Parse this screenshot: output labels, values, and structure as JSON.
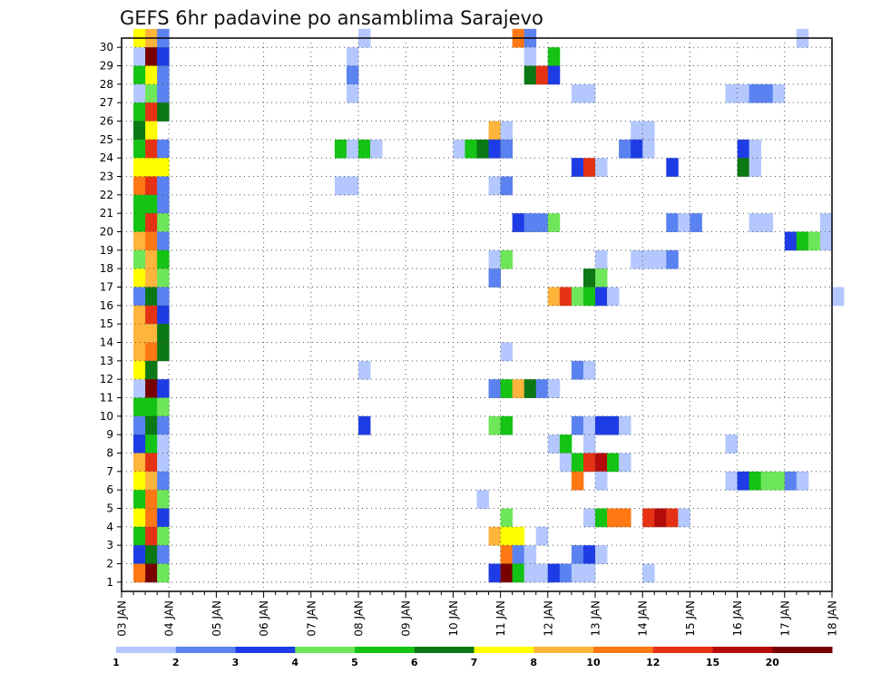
{
  "chart_data": {
    "type": "heatmap",
    "title": "GEFS 6hr padavine po ansamblima Sarajevo",
    "xlabel": "",
    "ylabel": "",
    "x_tick_labels": [
      "03 JAN",
      "04 JAN",
      "05 JAN",
      "06 JAN",
      "07 JAN",
      "08 JAN",
      "09 JAN",
      "10 JAN",
      "11 JAN",
      "12 JAN",
      "13 JAN",
      "14 JAN",
      "15 JAN",
      "16 JAN",
      "17 JAN",
      "18 JAN"
    ],
    "x_range": [
      "03 JAN",
      "18 JAN"
    ],
    "x_step_hours": 6,
    "y_tick_labels": [
      "1",
      "2",
      "3",
      "4",
      "5",
      "6",
      "7",
      "8",
      "9",
      "10",
      "11",
      "12",
      "13",
      "14",
      "15",
      "16",
      "17",
      "18",
      "19",
      "20",
      "21",
      "22",
      "23",
      "24",
      "25",
      "26",
      "27",
      "28",
      "29",
      "30"
    ],
    "y_range": [
      0,
      30
    ],
    "grid": true,
    "grid_style": "dotted",
    "colorbar": {
      "placement": "bottom",
      "labels": [
        "1",
        "2",
        "3",
        "4",
        "5",
        "6",
        "7",
        "8",
        "10",
        "12",
        "15",
        "20"
      ],
      "colors": [
        "#b4c8ff",
        "#5a82f0",
        "#1e3ce6",
        "#6ee65a",
        "#14c314",
        "#0a7814",
        "#ffff00",
        "#ffb43c",
        "#ff7814",
        "#e63214",
        "#b40a0a",
        "#780000"
      ]
    },
    "cells_format": "[member, day, step, color_index]",
    "cells": [
      [
        30,
        0,
        1,
        6
      ],
      [
        30,
        0,
        2,
        7
      ],
      [
        30,
        0,
        3,
        1
      ],
      [
        30,
        5,
        0,
        0
      ],
      [
        30,
        8,
        1,
        8
      ],
      [
        30,
        8,
        2,
        1
      ],
      [
        30,
        14,
        1,
        0
      ],
      [
        29,
        0,
        1,
        0
      ],
      [
        29,
        0,
        2,
        11
      ],
      [
        29,
        0,
        3,
        2
      ],
      [
        29,
        4,
        3,
        0
      ],
      [
        29,
        8,
        2,
        0
      ],
      [
        29,
        9,
        0,
        4
      ],
      [
        28,
        0,
        1,
        4
      ],
      [
        28,
        0,
        2,
        6
      ],
      [
        28,
        0,
        3,
        1
      ],
      [
        28,
        4,
        3,
        1
      ],
      [
        28,
        8,
        2,
        5
      ],
      [
        28,
        8,
        3,
        9
      ],
      [
        28,
        9,
        0,
        2
      ],
      [
        27,
        0,
        1,
        0
      ],
      [
        27,
        0,
        2,
        3
      ],
      [
        27,
        0,
        3,
        1
      ],
      [
        27,
        4,
        3,
        0
      ],
      [
        27,
        9,
        2,
        0
      ],
      [
        27,
        9,
        3,
        0
      ],
      [
        27,
        12,
        3,
        0
      ],
      [
        27,
        13,
        0,
        0
      ],
      [
        27,
        13,
        1,
        1
      ],
      [
        27,
        13,
        2,
        1
      ],
      [
        27,
        13,
        3,
        0
      ],
      [
        26,
        0,
        1,
        4
      ],
      [
        26,
        0,
        2,
        9
      ],
      [
        26,
        0,
        3,
        5
      ],
      [
        25,
        0,
        1,
        5
      ],
      [
        25,
        0,
        2,
        6
      ],
      [
        25,
        7,
        3,
        7
      ],
      [
        25,
        8,
        0,
        0
      ],
      [
        25,
        10,
        3,
        0
      ],
      [
        25,
        11,
        0,
        0
      ],
      [
        24,
        0,
        1,
        4
      ],
      [
        24,
        0,
        2,
        9
      ],
      [
        24,
        0,
        3,
        1
      ],
      [
        24,
        4,
        2,
        4
      ],
      [
        24,
        4,
        3,
        0
      ],
      [
        24,
        5,
        0,
        4
      ],
      [
        24,
        5,
        1,
        0
      ],
      [
        24,
        7,
        0,
        0
      ],
      [
        24,
        7,
        1,
        4
      ],
      [
        24,
        7,
        2,
        5
      ],
      [
        24,
        7,
        3,
        2
      ],
      [
        24,
        8,
        0,
        1
      ],
      [
        24,
        10,
        2,
        1
      ],
      [
        24,
        10,
        3,
        2
      ],
      [
        24,
        11,
        0,
        0
      ],
      [
        24,
        13,
        0,
        2
      ],
      [
        24,
        13,
        1,
        0
      ],
      [
        23,
        0,
        1,
        6
      ],
      [
        23,
        0,
        2,
        6
      ],
      [
        23,
        0,
        3,
        6
      ],
      [
        23,
        9,
        2,
        2
      ],
      [
        23,
        9,
        3,
        9
      ],
      [
        23,
        10,
        0,
        0
      ],
      [
        23,
        11,
        2,
        2
      ],
      [
        23,
        13,
        0,
        5
      ],
      [
        23,
        13,
        1,
        0
      ],
      [
        22,
        0,
        1,
        8
      ],
      [
        22,
        0,
        2,
        9
      ],
      [
        22,
        0,
        3,
        1
      ],
      [
        22,
        4,
        2,
        0
      ],
      [
        22,
        4,
        3,
        0
      ],
      [
        22,
        7,
        3,
        0
      ],
      [
        22,
        8,
        0,
        1
      ],
      [
        21,
        0,
        1,
        4
      ],
      [
        21,
        0,
        2,
        4
      ],
      [
        21,
        0,
        3,
        1
      ],
      [
        20,
        0,
        1,
        4
      ],
      [
        20,
        0,
        2,
        9
      ],
      [
        20,
        0,
        3,
        3
      ],
      [
        20,
        8,
        1,
        2
      ],
      [
        20,
        8,
        2,
        1
      ],
      [
        20,
        8,
        3,
        1
      ],
      [
        20,
        9,
        0,
        3
      ],
      [
        20,
        11,
        2,
        1
      ],
      [
        20,
        11,
        3,
        0
      ],
      [
        20,
        12,
        0,
        1
      ],
      [
        20,
        13,
        1,
        0
      ],
      [
        20,
        13,
        2,
        0
      ],
      [
        20,
        14,
        3,
        0
      ],
      [
        19,
        0,
        1,
        7
      ],
      [
        19,
        0,
        2,
        8
      ],
      [
        19,
        0,
        3,
        1
      ],
      [
        19,
        14,
        0,
        2
      ],
      [
        19,
        14,
        1,
        4
      ],
      [
        19,
        14,
        2,
        3
      ],
      [
        19,
        14,
        3,
        0
      ],
      [
        18,
        0,
        1,
        3
      ],
      [
        18,
        0,
        2,
        7
      ],
      [
        18,
        0,
        3,
        4
      ],
      [
        18,
        7,
        3,
        0
      ],
      [
        18,
        8,
        0,
        3
      ],
      [
        18,
        10,
        0,
        0
      ],
      [
        18,
        10,
        3,
        0
      ],
      [
        18,
        11,
        0,
        0
      ],
      [
        18,
        11,
        1,
        0
      ],
      [
        18,
        11,
        2,
        1
      ],
      [
        17,
        0,
        1,
        6
      ],
      [
        17,
        0,
        2,
        7
      ],
      [
        17,
        0,
        3,
        3
      ],
      [
        17,
        7,
        3,
        1
      ],
      [
        17,
        9,
        3,
        5
      ],
      [
        17,
        10,
        0,
        3
      ],
      [
        16,
        0,
        1,
        1
      ],
      [
        16,
        0,
        2,
        5
      ],
      [
        16,
        0,
        3,
        1
      ],
      [
        16,
        9,
        0,
        7
      ],
      [
        16,
        9,
        1,
        9
      ],
      [
        16,
        9,
        2,
        3
      ],
      [
        16,
        9,
        3,
        4
      ],
      [
        16,
        10,
        0,
        2
      ],
      [
        16,
        10,
        1,
        0
      ],
      [
        16,
        15,
        0,
        0
      ],
      [
        15,
        0,
        1,
        7
      ],
      [
        15,
        0,
        2,
        9
      ],
      [
        15,
        0,
        3,
        2
      ],
      [
        14,
        0,
        1,
        7
      ],
      [
        14,
        0,
        2,
        7
      ],
      [
        14,
        0,
        3,
        5
      ],
      [
        13,
        0,
        1,
        7
      ],
      [
        13,
        0,
        2,
        8
      ],
      [
        13,
        0,
        3,
        5
      ],
      [
        13,
        8,
        0,
        0
      ],
      [
        12,
        0,
        1,
        6
      ],
      [
        12,
        0,
        2,
        5
      ],
      [
        12,
        5,
        0,
        0
      ],
      [
        12,
        9,
        2,
        1
      ],
      [
        12,
        9,
        3,
        0
      ],
      [
        11,
        0,
        1,
        0
      ],
      [
        11,
        0,
        2,
        11
      ],
      [
        11,
        0,
        3,
        2
      ],
      [
        11,
        7,
        3,
        1
      ],
      [
        11,
        8,
        0,
        4
      ],
      [
        11,
        8,
        1,
        7
      ],
      [
        11,
        8,
        2,
        5
      ],
      [
        11,
        8,
        3,
        1
      ],
      [
        11,
        9,
        0,
        0
      ],
      [
        10,
        0,
        1,
        4
      ],
      [
        10,
        0,
        2,
        4
      ],
      [
        10,
        0,
        3,
        3
      ],
      [
        9,
        0,
        1,
        1
      ],
      [
        9,
        0,
        2,
        5
      ],
      [
        9,
        0,
        3,
        1
      ],
      [
        9,
        5,
        0,
        2
      ],
      [
        9,
        7,
        3,
        3
      ],
      [
        9,
        8,
        0,
        4
      ],
      [
        9,
        9,
        2,
        1
      ],
      [
        9,
        9,
        3,
        0
      ],
      [
        9,
        10,
        0,
        2
      ],
      [
        9,
        10,
        1,
        2
      ],
      [
        9,
        10,
        2,
        0
      ],
      [
        8,
        0,
        1,
        2
      ],
      [
        8,
        0,
        2,
        4
      ],
      [
        8,
        0,
        3,
        0
      ],
      [
        8,
        9,
        3,
        0
      ],
      [
        8,
        9,
        0,
        0
      ],
      [
        8,
        9,
        1,
        4
      ],
      [
        8,
        12,
        3,
        0
      ],
      [
        7,
        0,
        1,
        7
      ],
      [
        7,
        0,
        2,
        9
      ],
      [
        7,
        0,
        3,
        0
      ],
      [
        7,
        9,
        1,
        0
      ],
      [
        7,
        9,
        2,
        4
      ],
      [
        7,
        9,
        3,
        9
      ],
      [
        7,
        10,
        0,
        10
      ],
      [
        7,
        10,
        1,
        4
      ],
      [
        7,
        10,
        2,
        0
      ],
      [
        6,
        0,
        1,
        6
      ],
      [
        6,
        0,
        2,
        7
      ],
      [
        6,
        0,
        3,
        1
      ],
      [
        6,
        9,
        2,
        8
      ],
      [
        6,
        10,
        0,
        0
      ],
      [
        6,
        12,
        3,
        0
      ],
      [
        6,
        13,
        0,
        2
      ],
      [
        6,
        13,
        1,
        4
      ],
      [
        6,
        13,
        2,
        3
      ],
      [
        6,
        13,
        3,
        3
      ],
      [
        6,
        14,
        0,
        1
      ],
      [
        6,
        14,
        1,
        0
      ],
      [
        5,
        0,
        1,
        4
      ],
      [
        5,
        0,
        2,
        8
      ],
      [
        5,
        0,
        3,
        3
      ],
      [
        5,
        7,
        2,
        0
      ],
      [
        4,
        0,
        1,
        6
      ],
      [
        4,
        0,
        2,
        8
      ],
      [
        4,
        0,
        3,
        2
      ],
      [
        4,
        8,
        0,
        3
      ],
      [
        4,
        9,
        3,
        0
      ],
      [
        4,
        10,
        0,
        4
      ],
      [
        4,
        10,
        1,
        8
      ],
      [
        4,
        10,
        2,
        8
      ],
      [
        4,
        11,
        0,
        9
      ],
      [
        4,
        11,
        1,
        10
      ],
      [
        4,
        11,
        2,
        9
      ],
      [
        4,
        11,
        3,
        0
      ],
      [
        3,
        0,
        1,
        4
      ],
      [
        3,
        0,
        2,
        9
      ],
      [
        3,
        0,
        3,
        3
      ],
      [
        3,
        7,
        3,
        7
      ],
      [
        3,
        8,
        0,
        6
      ],
      [
        3,
        8,
        1,
        6
      ],
      [
        3,
        8,
        3,
        0
      ],
      [
        2,
        0,
        1,
        2
      ],
      [
        2,
        0,
        2,
        5
      ],
      [
        2,
        0,
        3,
        1
      ],
      [
        2,
        8,
        0,
        8
      ],
      [
        2,
        8,
        1,
        1
      ],
      [
        2,
        8,
        2,
        0
      ],
      [
        2,
        9,
        2,
        1
      ],
      [
        2,
        9,
        3,
        2
      ],
      [
        2,
        10,
        0,
        0
      ],
      [
        1,
        0,
        1,
        8
      ],
      [
        1,
        0,
        2,
        11
      ],
      [
        1,
        0,
        3,
        3
      ],
      [
        1,
        7,
        3,
        2
      ],
      [
        1,
        8,
        0,
        11
      ],
      [
        1,
        8,
        1,
        4
      ],
      [
        1,
        8,
        2,
        0
      ],
      [
        1,
        8,
        3,
        0
      ],
      [
        1,
        9,
        0,
        2
      ],
      [
        1,
        9,
        1,
        1
      ],
      [
        1,
        9,
        2,
        0
      ],
      [
        1,
        9,
        3,
        0
      ],
      [
        1,
        11,
        0,
        0
      ]
    ]
  }
}
